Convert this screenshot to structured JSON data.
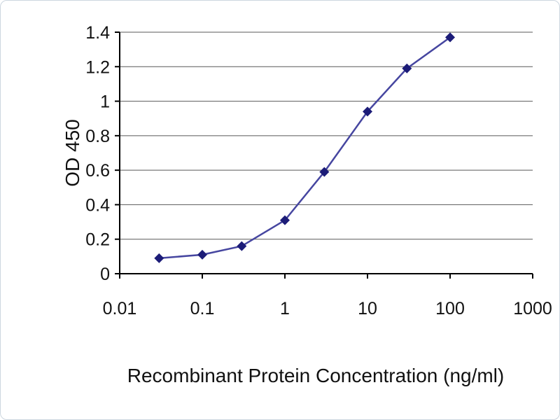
{
  "chart_data": {
    "type": "line",
    "title": "",
    "xlabel": "Recombinant Protein Concentration (ng/ml)",
    "ylabel": "OD 450",
    "x_scale": "log",
    "xlim": [
      0.01,
      1000
    ],
    "ylim": [
      0,
      1.4
    ],
    "x_ticks": [
      "0.01",
      "0.1",
      "1",
      "10",
      "100",
      "1000"
    ],
    "y_ticks": [
      "0",
      "0.2",
      "0.4",
      "0.6",
      "0.8",
      "1",
      "1.2",
      "1.4"
    ],
    "grid": "horizontal",
    "legend_position": "none",
    "series": [
      {
        "name": "OD 450",
        "x": [
          0.03,
          0.1,
          0.3,
          1,
          3,
          10,
          30,
          100
        ],
        "y": [
          0.09,
          0.11,
          0.16,
          0.31,
          0.59,
          0.94,
          1.19,
          1.37
        ],
        "marker": "diamond",
        "line_color": "#4646a0",
        "marker_color": "#1c1c78"
      }
    ]
  },
  "colors": {
    "axis": "#000000",
    "grid": "#595959",
    "background": "#ffffff",
    "frame_border": "#ccd6df"
  }
}
